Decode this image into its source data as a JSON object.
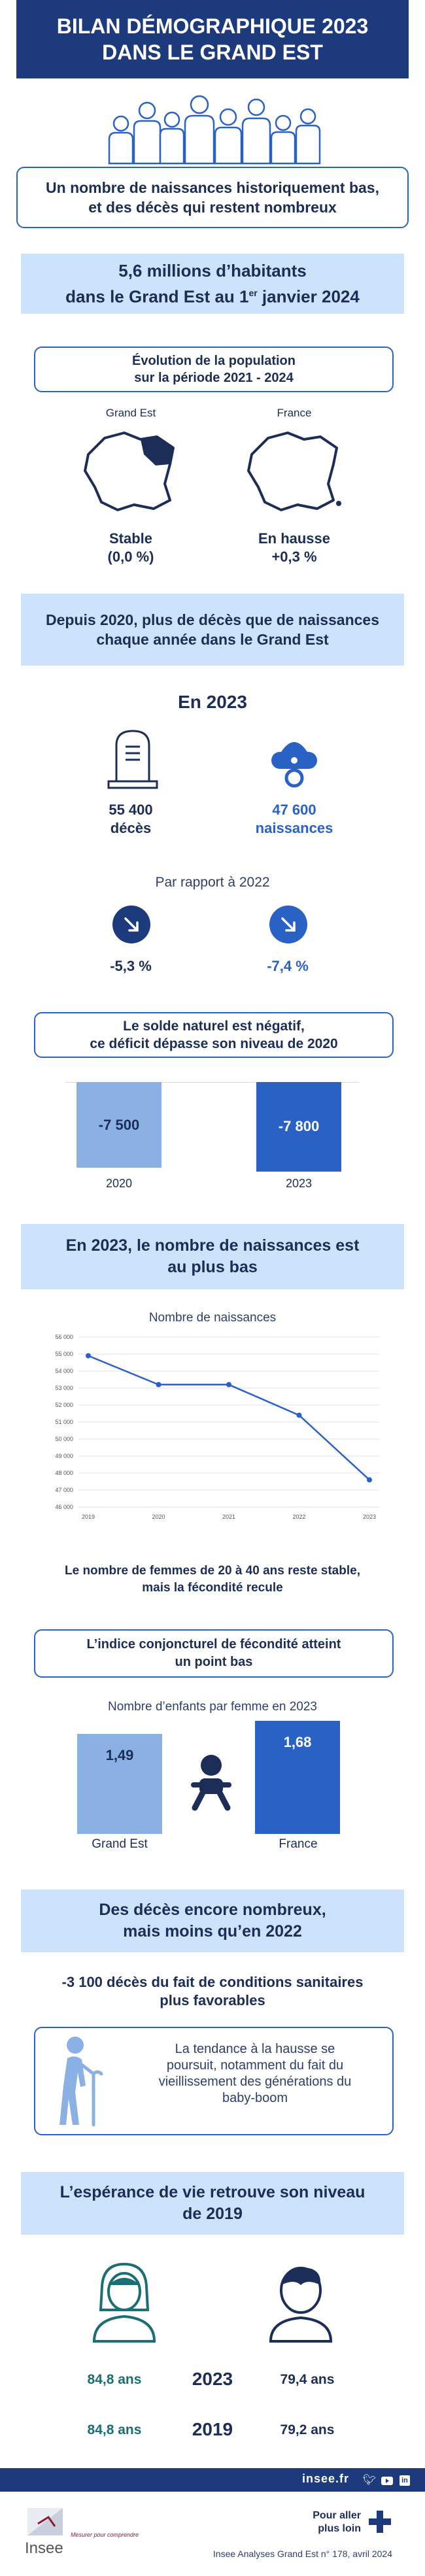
{
  "header": {
    "line1": "BILAN DÉMOGRAPHIQUE 2023",
    "line2": "DANS LE GRAND EST"
  },
  "intro": {
    "line1": "Un nombre de naissances historiquement bas,",
    "line2": "et des décès qui restent nombreux"
  },
  "population": {
    "line1": "5,6 millions d’habitants",
    "line2_a": "dans le Grand Est au 1",
    "line2_sup": "er",
    "line2_b": " janvier 2024"
  },
  "evolution": {
    "title_line1": "Évolution de la population",
    "title_line2": "sur la période 2021 - 2024",
    "regions": [
      {
        "label": "Grand Est",
        "status": "Stable",
        "value": "(0,0 %)"
      },
      {
        "label": "France",
        "status": "En hausse",
        "value": "+0,3 %"
      }
    ]
  },
  "deces_naissances": {
    "line1": "Depuis 2020, plus de décès que de naissances",
    "line2": "chaque année dans le Grand Est"
  },
  "year2023": {
    "title": "En 2023",
    "deaths_value": "55 400",
    "deaths_label": "décès",
    "births_value": "47 600",
    "births_label": "naissances",
    "compare_title": "Par rapport à 2022",
    "deaths_change": "-5,3 %",
    "births_change": "-7,4 %",
    "colors": {
      "dark": "#1c3a7c",
      "blue": "#2a61c4"
    }
  },
  "solde": {
    "line1": "Le solde naturel est négatif,",
    "line2": "ce déficit dépasse son niveau de 2020",
    "bars": [
      {
        "year": "2020",
        "value": -7500,
        "label": "-7 500",
        "color": "#8bb0e3"
      },
      {
        "year": "2023",
        "value": -7800,
        "label": "-7 800",
        "color": "#2a61c4"
      }
    ]
  },
  "naissances_section": {
    "line1": "En 2023, le nombre de naissances est",
    "line2": "au plus bas"
  },
  "chart_data": {
    "type": "line",
    "title": "Nombre de naissances",
    "x": [
      "2019",
      "2020",
      "2021",
      "2022",
      "2023"
    ],
    "series": [
      {
        "values": [
          54900,
          53200,
          53200,
          51400,
          47600
        ]
      }
    ],
    "ylim": [
      46000,
      56000
    ],
    "y_ticks": [
      "46 000",
      "47 000",
      "48 000",
      "49 000",
      "50 000",
      "51 000",
      "52 000",
      "53 000",
      "54 000",
      "55 000",
      "56 000"
    ],
    "grid": true,
    "color": "#2a61c4"
  },
  "femmes": {
    "line1": "Le nombre de femmes de 20 à 40 ans reste stable,",
    "line2": "mais la fécondité recule"
  },
  "icf": {
    "line1": "L’indice conjoncturel de fécondité atteint",
    "line2": "un point bas",
    "chart_title": "Nombre d’enfants par femme en 2023",
    "bars": [
      {
        "label": "Grand Est",
        "value": 1.49,
        "display": "1,49",
        "color": "#8bb0e3"
      },
      {
        "label": "France",
        "value": 1.68,
        "display": "1,68",
        "color": "#2a61c4"
      }
    ]
  },
  "deces_section": {
    "line1": "Des décès encore nombreux,",
    "line2": "mais moins qu’en 2022",
    "sub_line1": "-3 100 décès du fait de conditions sanitaires",
    "sub_line2": "plus favorables",
    "trend_line1": "La tendance à la hausse se",
    "trend_line2": "poursuit, notamment du fait du",
    "trend_line3": "vieillissement des générations  du",
    "trend_line4": "baby-boom"
  },
  "esperance": {
    "line1": "L’espérance de vie retrouve son niveau",
    "line2": "de 2019",
    "rows": [
      {
        "year": "2023",
        "women": "84,8 ans",
        "men": "79,4 ans"
      },
      {
        "year": "2019",
        "women": "84,8 ans",
        "men": "79,2 ans"
      }
    ],
    "colors": {
      "women": "#1a6e74",
      "men": "#1c2d57"
    }
  },
  "footer": {
    "site": "insee.fr",
    "logo_text": "Insee",
    "tagline": "Mesurer pour comprendre",
    "more_line1": "Pour aller",
    "more_line2": "plus loin",
    "reference": "Insee Analyses Grand Est n° 178, avril 2024"
  }
}
